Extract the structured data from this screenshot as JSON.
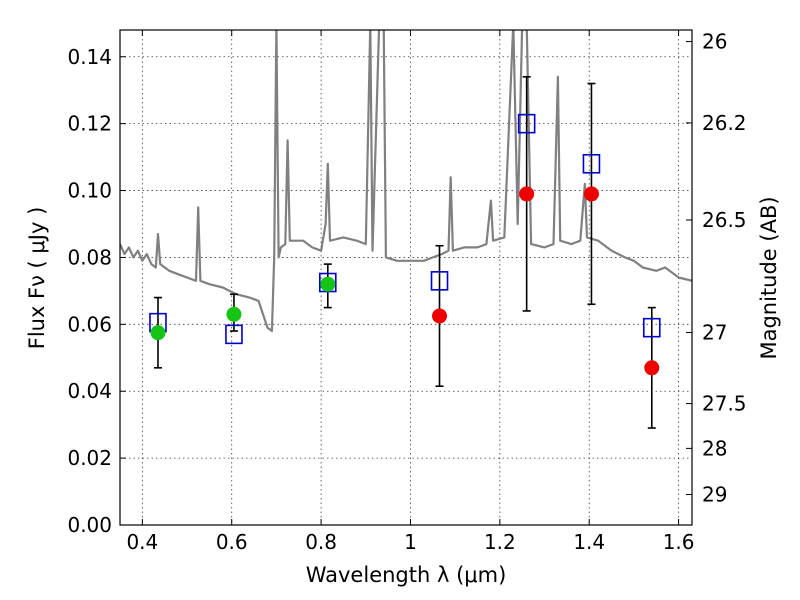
{
  "chart_data": {
    "type": "scatter",
    "xlabel": "Wavelength  λ (μm)",
    "ylabel": "Flux  Fν  ( μJy )",
    "ylabel_right": "Magnitude (AB)",
    "xlim": [
      0.35,
      1.63
    ],
    "ylim": [
      0.0,
      0.148
    ],
    "x_ticks": [
      0.4,
      0.6,
      0.8,
      1.0,
      1.2,
      1.4,
      1.6
    ],
    "x_tick_labels": [
      "0.4",
      "0.6",
      "0.8",
      "1",
      "1.2",
      "1.4",
      "1.6"
    ],
    "y_ticks": [
      0.0,
      0.02,
      0.04,
      0.06,
      0.08,
      0.1,
      0.12,
      0.14
    ],
    "y_tick_labels": [
      "0.00",
      "0.02",
      "0.04",
      "0.06",
      "0.08",
      "0.10",
      "0.12",
      "0.14"
    ],
    "right_axis_ticks": [
      {
        "label": "26",
        "mag": 26.0
      },
      {
        "label": "26.2",
        "mag": 26.2
      },
      {
        "label": "26.5",
        "mag": 26.5
      },
      {
        "label": "27",
        "mag": 27.0
      },
      {
        "label": "27.5",
        "mag": 27.5
      },
      {
        "label": "28",
        "mag": 28.0
      },
      {
        "label": "29",
        "mag": 29.0
      }
    ],
    "grid": true,
    "colors": {
      "spectrum": "#808080",
      "model": "#0000cc",
      "observed_detection": "#16c416",
      "observed_other": "#ee0000",
      "errorbar": "#000000"
    },
    "spectrum": [
      [
        0.35,
        0.084
      ],
      [
        0.36,
        0.081
      ],
      [
        0.37,
        0.083
      ],
      [
        0.38,
        0.08
      ],
      [
        0.39,
        0.082
      ],
      [
        0.4,
        0.079
      ],
      [
        0.41,
        0.081
      ],
      [
        0.42,
        0.078
      ],
      [
        0.43,
        0.077
      ],
      [
        0.435,
        0.087
      ],
      [
        0.44,
        0.078
      ],
      [
        0.46,
        0.076
      ],
      [
        0.48,
        0.075
      ],
      [
        0.5,
        0.074
      ],
      [
        0.52,
        0.073
      ],
      [
        0.525,
        0.095
      ],
      [
        0.53,
        0.073
      ],
      [
        0.55,
        0.072
      ],
      [
        0.58,
        0.071
      ],
      [
        0.61,
        0.069
      ],
      [
        0.64,
        0.068
      ],
      [
        0.66,
        0.067
      ],
      [
        0.68,
        0.059
      ],
      [
        0.69,
        0.058
      ],
      [
        0.695,
        0.08
      ],
      [
        0.7,
        0.15
      ],
      [
        0.705,
        0.08
      ],
      [
        0.71,
        0.083
      ],
      [
        0.72,
        0.084
      ],
      [
        0.725,
        0.115
      ],
      [
        0.73,
        0.085
      ],
      [
        0.76,
        0.085
      ],
      [
        0.78,
        0.083
      ],
      [
        0.8,
        0.082
      ],
      [
        0.81,
        0.09
      ],
      [
        0.815,
        0.108
      ],
      [
        0.82,
        0.085
      ],
      [
        0.85,
        0.086
      ],
      [
        0.88,
        0.085
      ],
      [
        0.9,
        0.084
      ],
      [
        0.91,
        0.15
      ],
      [
        0.915,
        0.082
      ],
      [
        0.93,
        0.15
      ],
      [
        0.94,
        0.15
      ],
      [
        0.945,
        0.08
      ],
      [
        0.97,
        0.079
      ],
      [
        1.0,
        0.079
      ],
      [
        1.03,
        0.079
      ],
      [
        1.05,
        0.08
      ],
      [
        1.07,
        0.081
      ],
      [
        1.085,
        0.082
      ],
      [
        1.09,
        0.104
      ],
      [
        1.095,
        0.082
      ],
      [
        1.12,
        0.083
      ],
      [
        1.15,
        0.083
      ],
      [
        1.17,
        0.084
      ],
      [
        1.18,
        0.097
      ],
      [
        1.185,
        0.085
      ],
      [
        1.21,
        0.086
      ],
      [
        1.23,
        0.15
      ],
      [
        1.24,
        0.09
      ],
      [
        1.25,
        0.15
      ],
      [
        1.26,
        0.15
      ],
      [
        1.27,
        0.084
      ],
      [
        1.3,
        0.083
      ],
      [
        1.32,
        0.084
      ],
      [
        1.33,
        0.134
      ],
      [
        1.335,
        0.085
      ],
      [
        1.36,
        0.084
      ],
      [
        1.38,
        0.085
      ],
      [
        1.39,
        0.102
      ],
      [
        1.395,
        0.086
      ],
      [
        1.42,
        0.085
      ],
      [
        1.45,
        0.082
      ],
      [
        1.48,
        0.08
      ],
      [
        1.5,
        0.079
      ],
      [
        1.52,
        0.077
      ],
      [
        1.55,
        0.076
      ],
      [
        1.57,
        0.077
      ],
      [
        1.6,
        0.074
      ],
      [
        1.63,
        0.073
      ]
    ],
    "model_points": [
      {
        "x": 0.435,
        "y": 0.0605
      },
      {
        "x": 0.605,
        "y": 0.057
      },
      {
        "x": 0.815,
        "y": 0.0725
      },
      {
        "x": 1.065,
        "y": 0.073
      },
      {
        "x": 1.26,
        "y": 0.12
      },
      {
        "x": 1.405,
        "y": 0.108
      },
      {
        "x": 1.54,
        "y": 0.059
      }
    ],
    "observed_points": [
      {
        "x": 0.435,
        "y": 0.0575,
        "err_low": 0.047,
        "err_high": 0.068,
        "group": "detection"
      },
      {
        "x": 0.605,
        "y": 0.063,
        "err_low": 0.058,
        "err_high": 0.069,
        "group": "detection"
      },
      {
        "x": 0.815,
        "y": 0.072,
        "err_low": 0.065,
        "err_high": 0.078,
        "group": "detection"
      },
      {
        "x": 1.065,
        "y": 0.0625,
        "err_low": 0.0415,
        "err_high": 0.0835,
        "group": "other"
      },
      {
        "x": 1.26,
        "y": 0.099,
        "err_low": 0.064,
        "err_high": 0.134,
        "group": "other"
      },
      {
        "x": 1.405,
        "y": 0.099,
        "err_low": 0.066,
        "err_high": 0.132,
        "group": "other"
      },
      {
        "x": 1.54,
        "y": 0.047,
        "err_low": 0.029,
        "err_high": 0.065,
        "group": "other"
      }
    ]
  }
}
